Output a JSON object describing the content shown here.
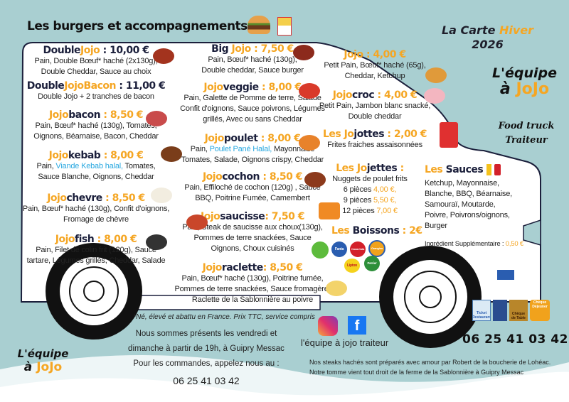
{
  "header": {
    "title": "Les burgers et accompagnements",
    "carte_line1_a": "La Carte ",
    "carte_line1_b": "Hiver",
    "carte_line2": "2026"
  },
  "brand": {
    "logo_line1": "L'équipe",
    "logo_a": "à",
    "logo_jojo": "JoJo",
    "tagline1": "Food truck",
    "tagline2": "Traiteur"
  },
  "colors": {
    "accent": "#f5a623",
    "dark": "#1b1f3b",
    "background": "#a9cfd1",
    "highlight": "#29a8e0"
  },
  "burgers_left": [
    {
      "pre": "Double",
      "jo": "Jojo",
      "post": "",
      "price": " : 10,00 €",
      "price_orange": false,
      "desc": [
        "Pain, Double Bœuf* haché (2x130g),",
        "Double Cheddar, Sauce au choix"
      ],
      "icon": "steak-icon"
    },
    {
      "pre": "Double",
      "jo": "JojoBacon",
      "post": "",
      "price": " : 11,00 €",
      "price_orange": false,
      "desc": [
        "Double Jojo + 2 tranches de bacon"
      ],
      "icon": ""
    },
    {
      "pre": "",
      "jo": "Jojo",
      "post": "bacon",
      "price": " : 8,50 €",
      "price_orange": false,
      "desc": [
        "Pain, Bœuf* haché (130g), Tomates,",
        "Oignons, Béarnaise, Bacon, Cheddar"
      ],
      "icon": "ham-icon"
    },
    {
      "pre": "",
      "jo": "Jojo",
      "post": "kebab",
      "price": " : 8,00 €",
      "price_orange": false,
      "desc_hl": {
        "before": "Pain, ",
        "hl": "Viande Kebab halal,",
        "after": " Tomates,"
      },
      "desc": [
        "Sauce Blanche, Oignons, Cheddar"
      ],
      "icon": "kebab-icon"
    },
    {
      "pre": "",
      "jo": "Jojo",
      "post": "chevre",
      "price": " : 8,50 €",
      "price_orange": false,
      "desc": [
        "Pain, Bœuf* haché (130g), Confit d'oignons,",
        "Fromage de chèvre"
      ],
      "icon": "goat-cheese-icon"
    },
    {
      "pre": "",
      "jo": "Jojo",
      "post": "fish",
      "price": " : 8,00 €",
      "price_orange": false,
      "desc": [
        "Pain, Filet de colin frit (120g), Sauce",
        "tartare, Légumes grillés, Cheddar, Salade"
      ],
      "icon": "fish-icon"
    }
  ],
  "burgers_middle": [
    {
      "pre": "Big ",
      "jo": "Jojo",
      "post": "",
      "price": " : 7,50 €",
      "desc": [
        "Pain, Bœuf* haché (130g),",
        "Double cheddar, Sauce burger"
      ],
      "icon": "steak-icon"
    },
    {
      "pre": "",
      "jo": "Jojo",
      "post": "veggie",
      "price": " : 8,00 €",
      "desc": [
        "Pain, Galette de Pomme de terre, Salade",
        "Confit d'oignons, Sauce poivrons, Légumes",
        "grillés, Avec ou sans Cheddar"
      ],
      "icon": "tomato-icon"
    },
    {
      "pre": "",
      "jo": "Jojo",
      "post": "poulet",
      "price": " : 8,00 €",
      "desc_hl": {
        "before": "Pain, ",
        "hl": "Poulet Pané Halal,",
        "after": " Mayonnaise"
      },
      "desc": [
        "Tomates, Salade, Oignons crispy, Cheddar"
      ],
      "icon": "chicken-icon"
    },
    {
      "pre": "",
      "jo": "Jojo",
      "post": "cochon",
      "price": " : 8,50 €",
      "desc": [
        "Pain, Effiloché de cochon (120g) , Sauce",
        "BBQ, Poitrine Fumée, Camembert"
      ],
      "icon": "bacon-icon"
    },
    {
      "pre": "",
      "jo": "Jojo",
      "post": "saucisse",
      "price": ": 7,50 €",
      "desc": [
        "Pain, Steak de saucisse aux choux(130g),",
        "Pommes de terre snackées, Sauce",
        "Oignons, Choux cuisinés"
      ],
      "icon": "sausage-icon"
    },
    {
      "pre": "",
      "jo": "Jojo",
      "post": "raclette",
      "price": ": 8,50 €",
      "desc": [
        "Pain, Bœuf* haché (130g), Poitrine fumée,",
        "Pommes de terre snackées, Sauce fromagère,",
        "Raclette de la Sablonnière au poivre"
      ],
      "icon": "cheese-icon"
    }
  ],
  "right": [
    {
      "pre": "",
      "jo": "Jojo",
      "post": "",
      "price": " : 4,00 €",
      "desc": [
        "Petit Pain, Bœuf* haché (65g),",
        "Cheddar, Ketchup"
      ],
      "icon": "burger-icon"
    },
    {
      "pre": "",
      "jo": "Jojo",
      "post": "croc",
      "price": " : 4,00 €",
      "desc": [
        "Petit Pain, Jambon blanc snacké,",
        "Double cheddar"
      ],
      "icon": "ham-icon"
    },
    {
      "pre": "Les ",
      "jo": "Jo",
      "post": "jottes",
      "price": " : 2,00 €",
      "desc": [
        "Frites fraiches assaisonnées"
      ],
      "icon": "fries-icon"
    }
  ],
  "jojettes": {
    "pre": "Les ",
    "jo": "Jo",
    "post": "jettes",
    "price": " :",
    "desc": "Nuggets de poulet frits",
    "options": [
      {
        "label": "6 pièces ",
        "price": "4,00 €,"
      },
      {
        "label": "9 pièces ",
        "price": "5,50 €,"
      },
      {
        "label": "12 pièces ",
        "price": "7,00 €"
      }
    ]
  },
  "boissons": {
    "pre": "Les ",
    "post": "Boissons",
    "price": " : 2€",
    "brands": [
      "Fanta",
      "Coca-Cola",
      "Orangina",
      "Lipton",
      "Perrier"
    ]
  },
  "sauces": {
    "pre": "Les ",
    "post": "Sauces",
    "lines": [
      "Ketchup, Mayonnaise,",
      "Blanche, BBQ, Béarnaise,",
      "Samouraï,  Moutarde,",
      "Poivre, Poivrons/oignons,",
      "Burger"
    ],
    "extra_label": "Ingrédient Supplémentaire : ",
    "extra_price": "0,50 €"
  },
  "footer": {
    "disclaimer": "*Né, élevé et abattu en France. Prix TTC, service compris",
    "presence": [
      "Nous sommes présents les vendredi et",
      "dimanche à partir de  19h, à Guipry Messac",
      "Pour les commandes, appelez nous au :"
    ],
    "phone_small": "06 25 41 03 42",
    "social_name": "l'équipe à jojo traiteur",
    "phone_big": "06 25 41 03 42",
    "note": [
      "Nos steaks hachés sont préparés avec amour par Robert de la boucherie de Lohéac.",
      "Notre tomme vient tout droit de la ferme de la Sablonnière à Guipry Messac"
    ],
    "payments": [
      "Ticket Restaurant",
      "Chèque de Table",
      "Chèque Déjeuner"
    ]
  }
}
